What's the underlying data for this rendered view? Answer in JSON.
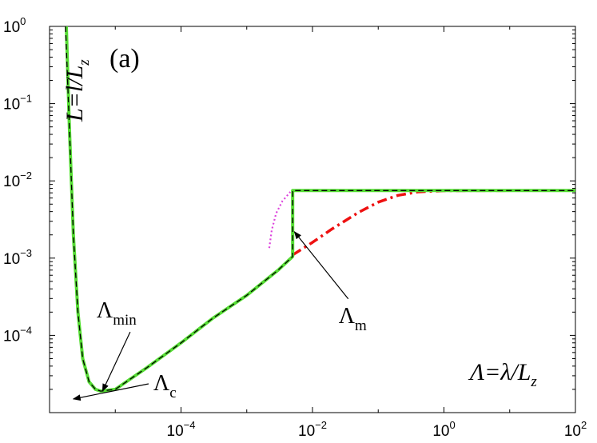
{
  "chart_data": {
    "type": "line",
    "panel_label": "(a)",
    "x_scale": "log",
    "y_scale": "log",
    "xlim": [
      1e-06,
      100
    ],
    "ylim": [
      1e-05,
      1
    ],
    "x_ticks": [
      {
        "value": 0.0001,
        "base": "10",
        "exp": "−4"
      },
      {
        "value": 0.01,
        "base": "10",
        "exp": "−2"
      },
      {
        "value": 1,
        "base": "10",
        "exp": "0"
      },
      {
        "value": 100,
        "base": "10",
        "exp": "2"
      }
    ],
    "y_ticks": [
      {
        "value": 1,
        "base": "10",
        "exp": "0"
      },
      {
        "value": 0.1,
        "base": "10",
        "exp": "−1"
      },
      {
        "value": 0.01,
        "base": "10",
        "exp": "−2"
      },
      {
        "value": 0.001,
        "base": "10",
        "exp": "−3"
      },
      {
        "value": 0.0001,
        "base": "10",
        "exp": "−4"
      }
    ],
    "xlabel": {
      "main": "Λ=λ/L",
      "sub": "z"
    },
    "ylabel": {
      "main": "L=l/L",
      "sub": "z"
    },
    "grid": false,
    "series": [
      {
        "style": "dashed",
        "color": "#000000",
        "x": [
          1.75e-06,
          2e-06,
          2.3e-06,
          2.7e-06,
          3.2e-06,
          4e-06,
          5e-06,
          6e-06,
          1e-05,
          3e-05,
          0.0001,
          0.0003,
          0.001,
          0.003,
          0.005,
          0.005,
          0.1,
          1,
          10,
          100
        ],
        "y": [
          1.0,
          0.05,
          0.002,
          0.0002,
          5e-05,
          2.5e-05,
          2e-05,
          1.9e-05,
          2e-05,
          3.8e-05,
          8e-05,
          0.000165,
          0.00033,
          0.0007,
          0.00105,
          0.0075,
          0.0075,
          0.0075,
          0.0075,
          0.0075
        ]
      },
      {
        "style": "solid",
        "color": "#55dd33",
        "x": [
          1.8e-06,
          2e-06,
          2.3e-06,
          2.7e-06,
          3.2e-06,
          4e-06,
          5e-06,
          6e-06,
          1e-05,
          3e-05,
          0.0001,
          0.0003,
          0.001,
          0.003,
          0.005,
          0.005,
          0.1,
          1,
          10,
          100
        ],
        "y": [
          1.0,
          0.05,
          0.002,
          0.0002,
          5e-05,
          2.5e-05,
          2e-05,
          1.9e-05,
          2e-05,
          3.8e-05,
          8e-05,
          0.000165,
          0.00033,
          0.0007,
          0.00105,
          0.0075,
          0.0075,
          0.0075,
          0.0075,
          0.0075
        ]
      },
      {
        "style": "dashdot",
        "color": "#ee1111",
        "x": [
          0.005,
          0.01,
          0.02,
          0.05,
          0.1,
          0.2,
          0.4,
          1,
          10,
          100
        ],
        "y": [
          0.0011,
          0.0016,
          0.0024,
          0.0039,
          0.0053,
          0.0065,
          0.0072,
          0.00745,
          0.0075,
          0.0075
        ]
      },
      {
        "style": "dotted",
        "color": "#dd44dd",
        "x": [
          0.0022,
          0.0024,
          0.0028,
          0.0035,
          0.0046
        ],
        "y": [
          0.00135,
          0.0023,
          0.0038,
          0.0055,
          0.0072
        ]
      }
    ],
    "annotations": [
      {
        "text": "Λ",
        "sub": "min",
        "label_x": 5.2e-06,
        "label_y": 0.00017,
        "arrow_to_x": 6.4e-06,
        "arrow_to_y": 1.9e-05
      },
      {
        "text": "Λ",
        "sub": "c",
        "label_x": 3.8e-05,
        "label_y": 1.95e-05,
        "arrow_to_x": 2.3e-06,
        "arrow_to_y": 1.5e-05
      },
      {
        "text": "Λ",
        "sub": "m",
        "label_x": 0.025,
        "label_y": 0.000145,
        "arrow_to_x": 0.0053,
        "arrow_to_y": 0.0022
      }
    ]
  }
}
